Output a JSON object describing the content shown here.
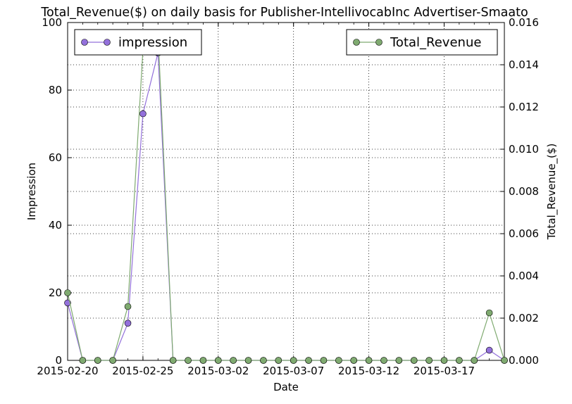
{
  "chart_data": {
    "type": "line",
    "title": "Total_Revenue($) on daily basis for Publisher-IntellivocabInc Advertiser-Smaato",
    "xlabel": "Date",
    "ylabel": "Impression",
    "y2label": "Total_Revenue_($)",
    "x_range": [
      "2015-02-20",
      "2015-03-21"
    ],
    "x_ticks": [
      "2015-02-20",
      "2015-02-25",
      "2015-03-02",
      "2015-03-07",
      "2015-03-12",
      "2015-03-17"
    ],
    "ylim": [
      0,
      100
    ],
    "y_ticks": [
      "0",
      "20",
      "40",
      "60",
      "80",
      "100"
    ],
    "y2lim": [
      0,
      0.016
    ],
    "y2_ticks": [
      "0.000",
      "0.002",
      "0.004",
      "0.006",
      "0.008",
      "0.010",
      "0.012",
      "0.014",
      "0.016"
    ],
    "grid": true,
    "x": [
      "2015-02-20",
      "2015-02-21",
      "2015-02-22",
      "2015-02-23",
      "2015-02-24",
      "2015-02-25",
      "2015-02-26",
      "2015-02-27",
      "2015-02-28",
      "2015-03-01",
      "2015-03-02",
      "2015-03-03",
      "2015-03-04",
      "2015-03-05",
      "2015-03-06",
      "2015-03-07",
      "2015-03-08",
      "2015-03-09",
      "2015-03-10",
      "2015-03-11",
      "2015-03-12",
      "2015-03-13",
      "2015-03-14",
      "2015-03-15",
      "2015-03-16",
      "2015-03-17",
      "2015-03-18",
      "2015-03-19",
      "2015-03-20",
      "2015-03-21"
    ],
    "series": [
      {
        "name": "impression",
        "axis": "left",
        "color": "#9370db",
        "values": [
          17,
          0,
          0,
          0,
          11,
          73,
          91,
          0,
          0,
          0,
          0,
          0,
          0,
          0,
          0,
          0,
          0,
          0,
          0,
          0,
          0,
          0,
          0,
          0,
          0,
          0,
          0,
          0,
          3,
          0
        ]
      },
      {
        "name": "Total_Revenue",
        "axis": "right",
        "color": "#7faa70",
        "values": [
          0.0032,
          0,
          0,
          0,
          0.00255,
          0.0147,
          0.0155,
          0,
          0,
          0,
          0,
          0,
          0,
          0,
          0,
          0,
          0,
          0,
          0,
          0,
          0,
          0,
          0,
          0,
          0,
          0,
          0,
          0,
          0.00225,
          0
        ]
      }
    ],
    "legends": [
      {
        "label": "impression",
        "position": "top-left"
      },
      {
        "label": "Total_Revenue",
        "position": "top-right"
      }
    ]
  }
}
